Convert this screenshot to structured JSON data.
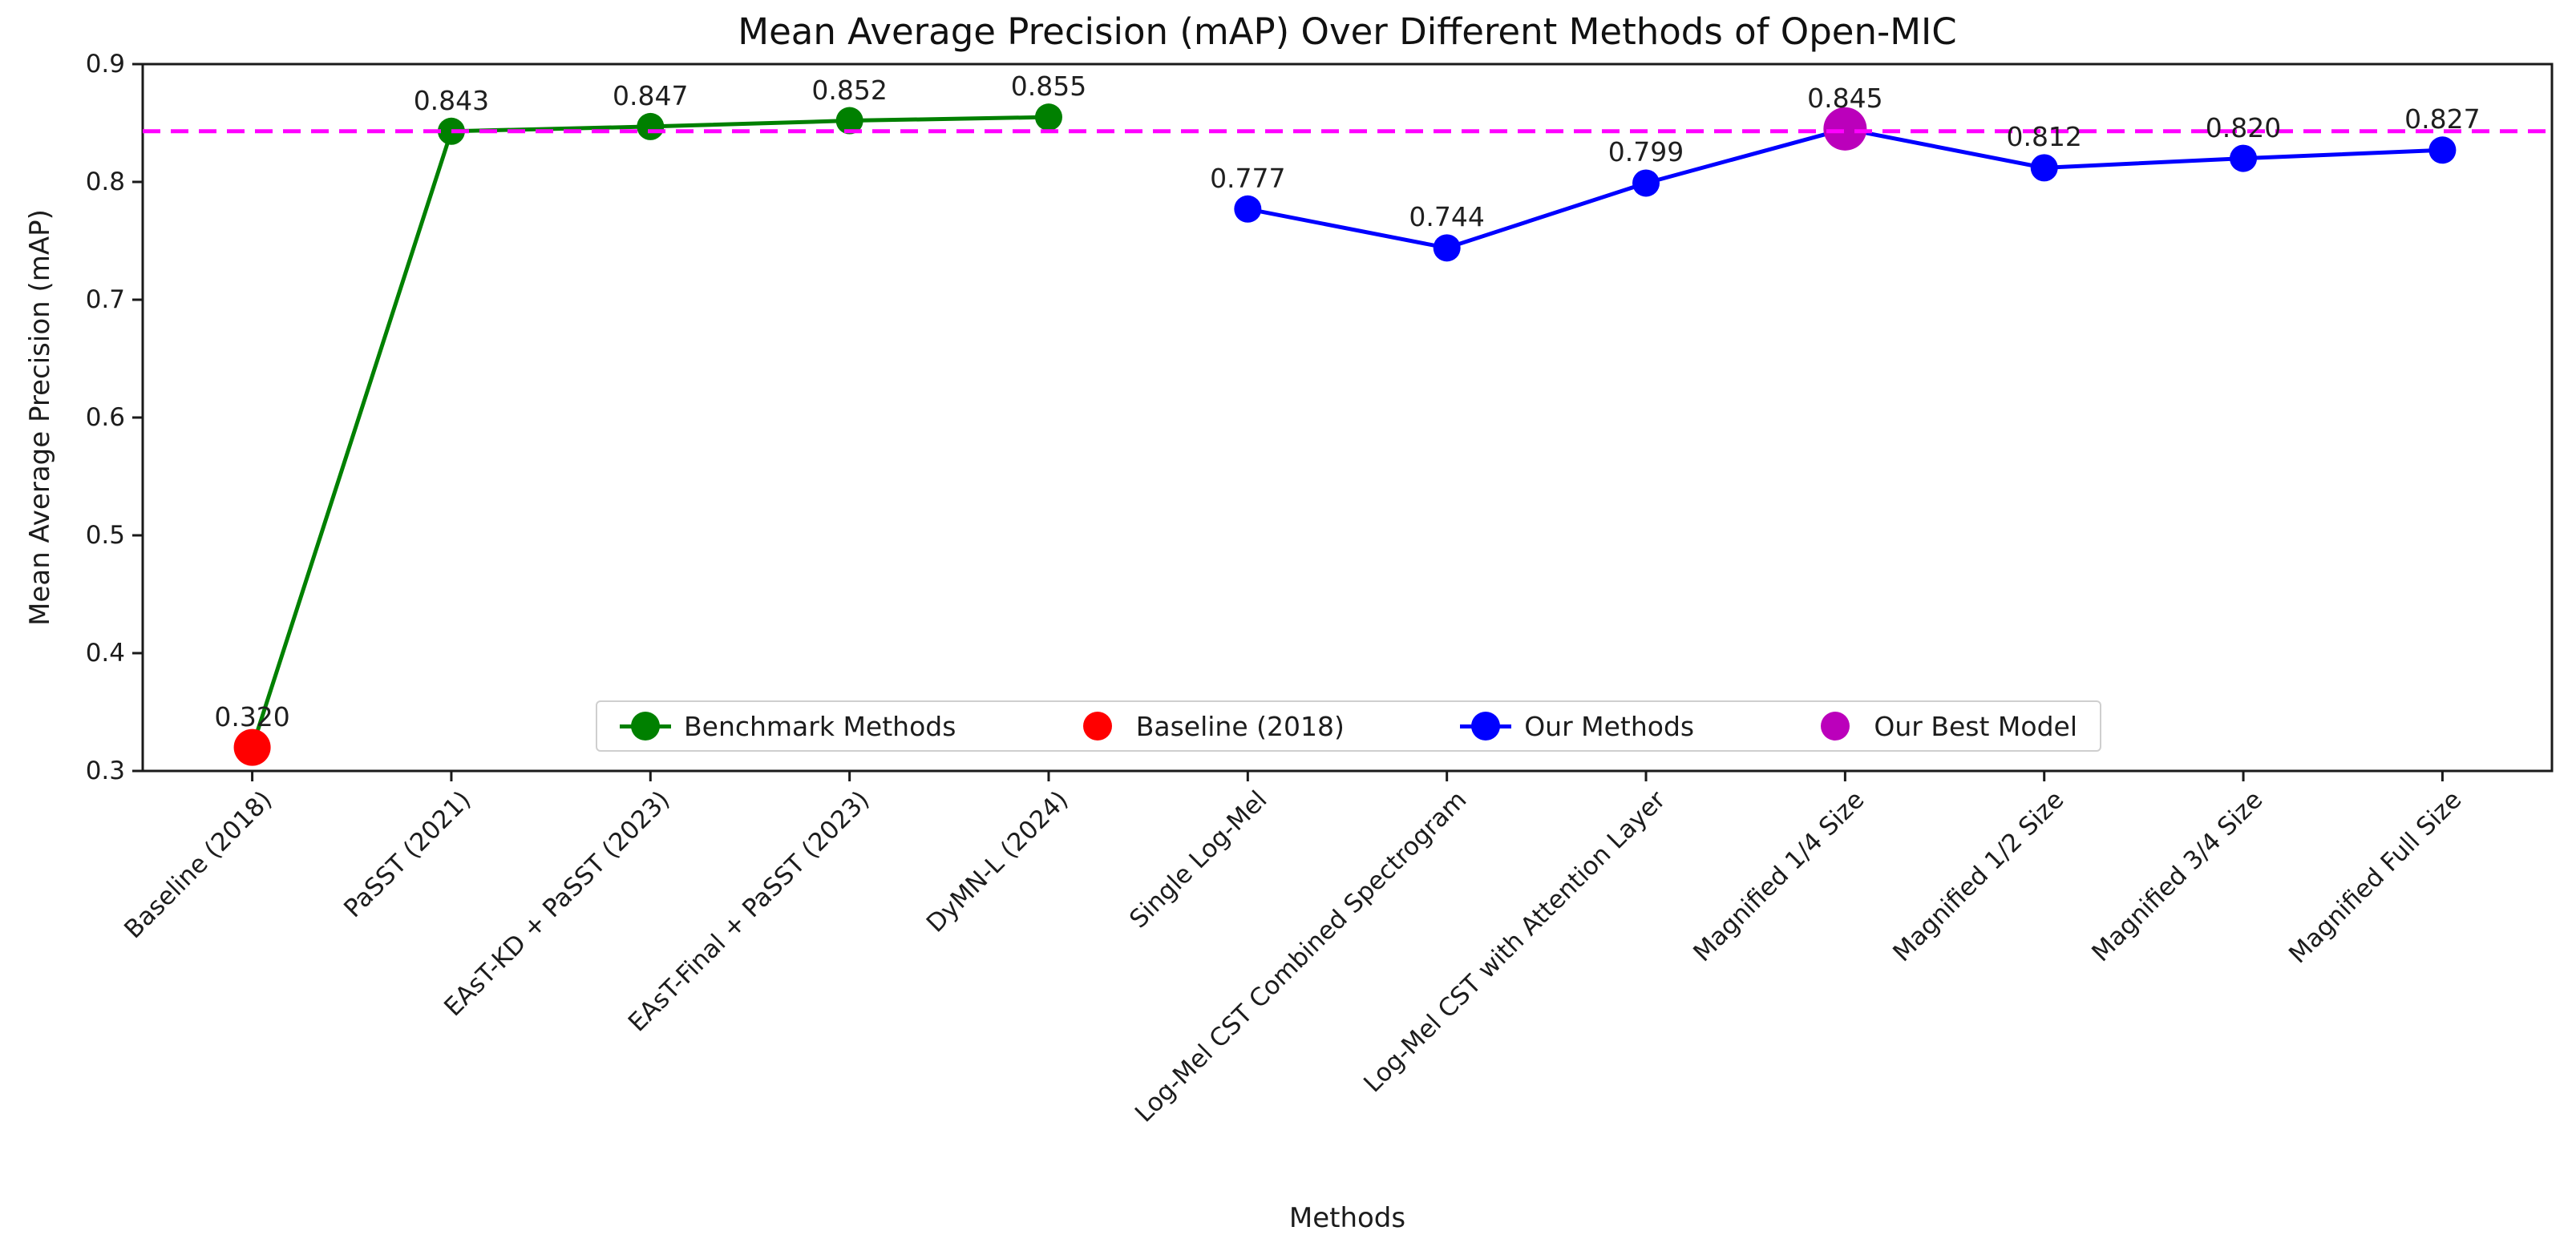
{
  "chart_data": {
    "type": "line",
    "title": "Mean Average Precision (mAP) Over Different Methods of Open-MIC",
    "xlabel": "Methods",
    "ylabel": "Mean Average Precision (mAP)",
    "ylim": [
      0.3,
      0.9
    ],
    "yticks": [
      0.3,
      0.4,
      0.5,
      0.6,
      0.7,
      0.8,
      0.9
    ],
    "grid": false,
    "categories": [
      "Baseline (2018)",
      "PaSST (2021)",
      "EAsT-KD + PaSST (2023)",
      "EAsT-Final + PaSST (2023)",
      "DyMN-L (2024)",
      "Single Log-Mel",
      "Log-Mel CST Combined Spectrogram",
      "Log-Mel CST with Attention Layer",
      "Magnified 1/4 Size",
      "Magnified 1/2 Size",
      "Magnified 3/4 Size",
      "Magnified Full Size"
    ],
    "series": [
      {
        "name": "Benchmark Methods",
        "color": "#008000",
        "x": [
          0,
          1,
          2,
          3,
          4
        ],
        "values": [
          0.32,
          0.843,
          0.847,
          0.852,
          0.855
        ]
      },
      {
        "name": "Our Methods",
        "color": "#0000ff",
        "x": [
          5,
          6,
          7,
          8,
          9,
          10,
          11
        ],
        "values": [
          0.777,
          0.744,
          0.799,
          0.845,
          0.812,
          0.82,
          0.827
        ]
      }
    ],
    "highlight_points": [
      {
        "name": "Baseline (2018)",
        "x": 0,
        "value": 0.32,
        "color": "#ff0000"
      },
      {
        "name": "Our Best Model",
        "x": 8,
        "value": 0.845,
        "color": "#bb00bb"
      }
    ],
    "annotations": [
      {
        "x": 0,
        "text": "0.320"
      },
      {
        "x": 1,
        "text": "0.843"
      },
      {
        "x": 2,
        "text": "0.847"
      },
      {
        "x": 3,
        "text": "0.852"
      },
      {
        "x": 4,
        "text": "0.855"
      },
      {
        "x": 5,
        "text": "0.777"
      },
      {
        "x": 6,
        "text": "0.744"
      },
      {
        "x": 7,
        "text": "0.799"
      },
      {
        "x": 8,
        "text": "0.845"
      },
      {
        "x": 9,
        "text": "0.812"
      },
      {
        "x": 10,
        "text": "0.820"
      },
      {
        "x": 11,
        "text": "0.827"
      }
    ],
    "reference_line": {
      "value": 0.843,
      "color": "#ff00ff",
      "style": "dashed"
    },
    "legend": {
      "position": "lower center",
      "entries": [
        {
          "label": "Benchmark Methods",
          "color": "#008000",
          "show_line": true
        },
        {
          "label": "Baseline (2018)",
          "color": "#ff0000",
          "show_line": false
        },
        {
          "label": "Our Methods",
          "color": "#0000ff",
          "show_line": true
        },
        {
          "label": "Our Best Model",
          "color": "#bb00bb",
          "show_line": false
        }
      ]
    }
  }
}
